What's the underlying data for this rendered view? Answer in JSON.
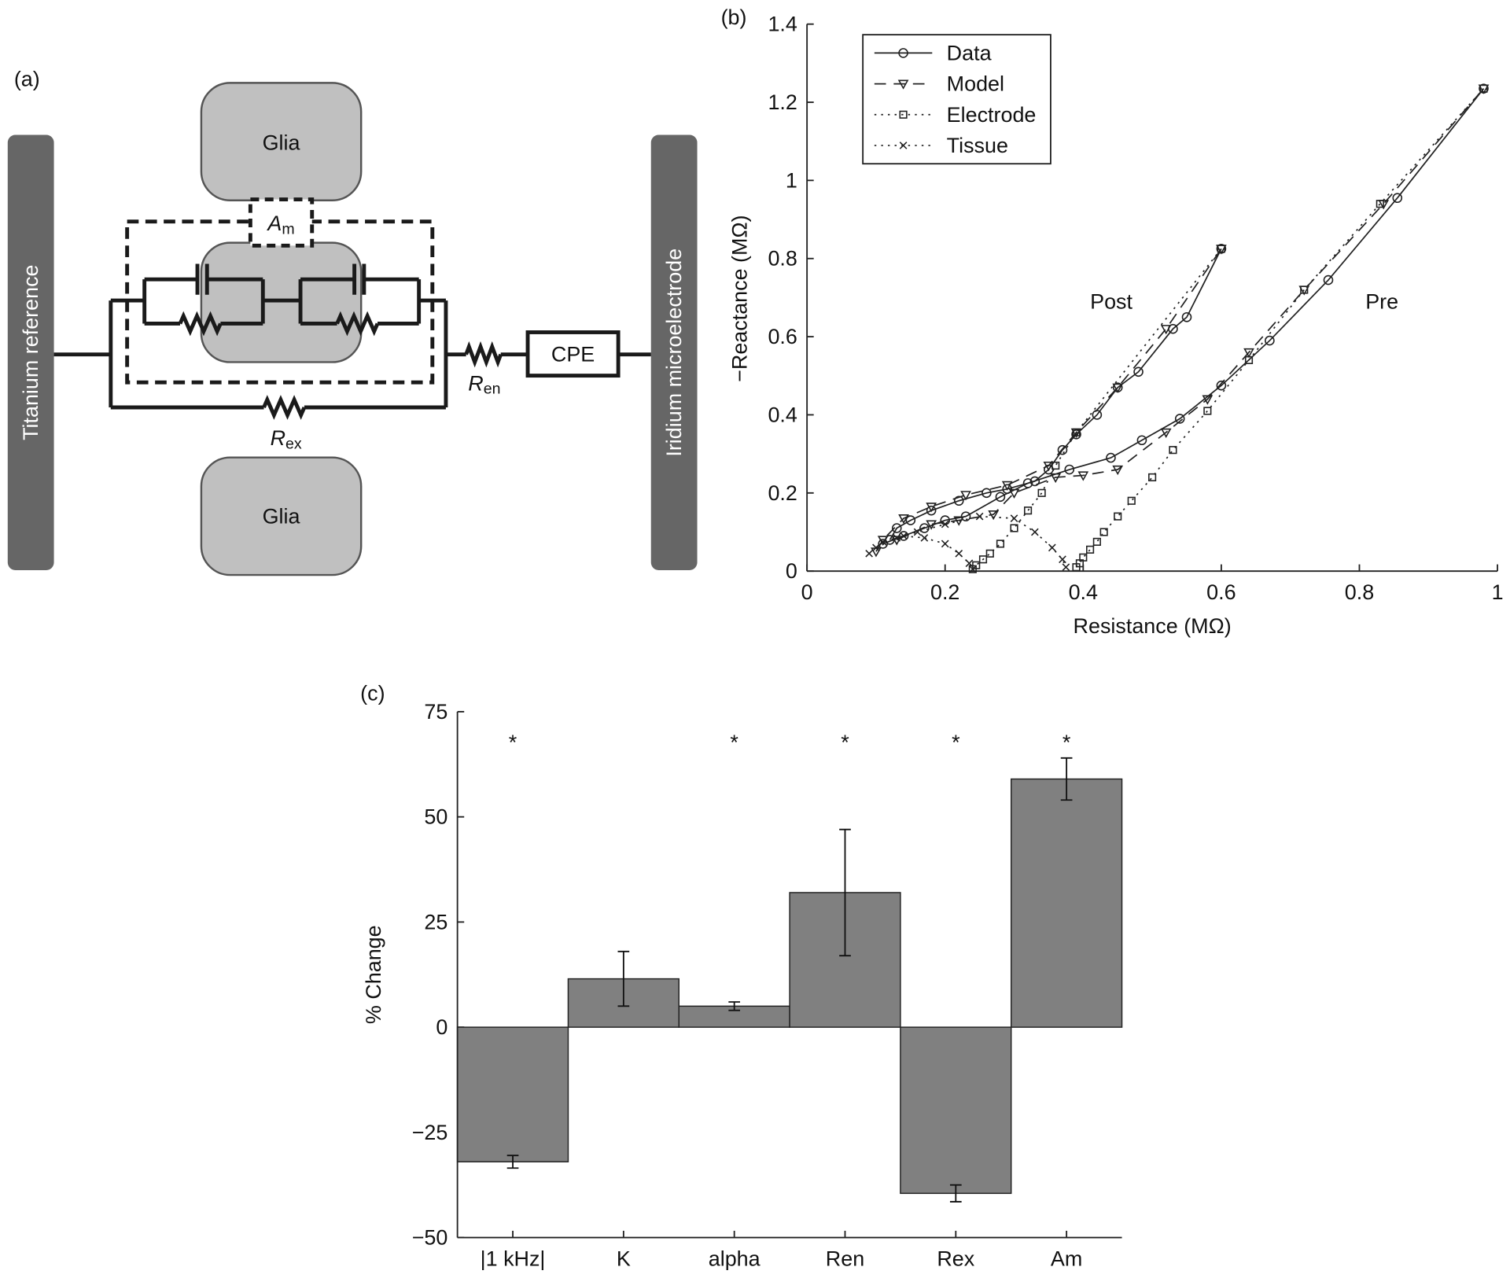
{
  "diagram": {
    "panel_label": "(a)",
    "left_electrode": "Titanium reference",
    "right_electrode": "Iridium microelectrode",
    "glia_top": "Glia",
    "glia_bottom": "Glia",
    "membrane": {
      "symbol": "A",
      "subscript": "m"
    },
    "r_en": {
      "symbol": "R",
      "subscript": "en"
    },
    "r_ex": {
      "symbol": "R",
      "subscript": "ex"
    },
    "cpe": "CPE"
  },
  "chart_data": [
    {
      "type": "line",
      "panel_label": "(b)",
      "x_label": "Resistance (MΩ)",
      "y_label": "−Reactance (MΩ)",
      "xlim": [
        0,
        1
      ],
      "ylim": [
        0,
        1.4
      ],
      "xticks": [
        0,
        0.2,
        0.4,
        0.6,
        0.8,
        1
      ],
      "yticks": [
        0,
        0.2,
        0.4,
        0.6,
        0.8,
        1,
        1.2,
        1.4
      ],
      "legend": "upper left",
      "annotations": [
        "Post",
        "Pre"
      ],
      "series": [
        {
          "name": "Data",
          "color": "#222222",
          "dash": "solid",
          "marker": "circle",
          "curves": [
            {
              "x": [
                0.12,
                0.13,
                0.15,
                0.18,
                0.22,
                0.26,
                0.29,
                0.33,
                0.35,
                0.37,
                0.39,
                0.42,
                0.45,
                0.48,
                0.53,
                0.55,
                0.6
              ],
              "y": [
                0.08,
                0.11,
                0.13,
                0.155,
                0.18,
                0.2,
                0.21,
                0.23,
                0.26,
                0.31,
                0.35,
                0.4,
                0.47,
                0.51,
                0.62,
                0.65,
                0.825
              ]
            },
            {
              "x": [
                0.11,
                0.14,
                0.17,
                0.2,
                0.23,
                0.28,
                0.32,
                0.38,
                0.44,
                0.485,
                0.54,
                0.6,
                0.67,
                0.755,
                0.855,
                0.98
              ],
              "y": [
                0.07,
                0.09,
                0.11,
                0.13,
                0.14,
                0.19,
                0.225,
                0.26,
                0.29,
                0.335,
                0.39,
                0.475,
                0.59,
                0.745,
                0.955,
                1.235
              ]
            }
          ]
        },
        {
          "name": "Model",
          "color": "#222222",
          "dash": "dashed",
          "marker": "triangle",
          "curves": [
            {
              "x": [
                0.1,
                0.11,
                0.14,
                0.18,
                0.23,
                0.29,
                0.35,
                0.39,
                0.45,
                0.52,
                0.6
              ],
              "y": [
                0.05,
                0.08,
                0.135,
                0.165,
                0.195,
                0.22,
                0.27,
                0.355,
                0.47,
                0.62,
                0.825
              ]
            },
            {
              "x": [
                0.13,
                0.18,
                0.22,
                0.27,
                0.3,
                0.36,
                0.4,
                0.45,
                0.52,
                0.58,
                0.64,
                0.72,
                0.835,
                0.98
              ],
              "y": [
                0.08,
                0.12,
                0.13,
                0.145,
                0.2,
                0.24,
                0.245,
                0.26,
                0.355,
                0.44,
                0.56,
                0.72,
                0.94,
                1.235
              ]
            }
          ]
        },
        {
          "name": "Electrode",
          "color": "#222222",
          "dash": "dotted",
          "marker": "square",
          "curves": [
            {
              "x": [
                0.24,
                0.245,
                0.255,
                0.265,
                0.28,
                0.3,
                0.32,
                0.34,
                0.36,
                0.39,
                0.6
              ],
              "y": [
                0.005,
                0.015,
                0.03,
                0.045,
                0.07,
                0.11,
                0.155,
                0.2,
                0.27,
                0.355,
                0.825
              ]
            },
            {
              "x": [
                0.39,
                0.395,
                0.4,
                0.41,
                0.42,
                0.43,
                0.45,
                0.47,
                0.5,
                0.53,
                0.58,
                0.64,
                0.72,
                0.83,
                0.98
              ],
              "y": [
                0.01,
                0.02,
                0.035,
                0.055,
                0.075,
                0.1,
                0.14,
                0.18,
                0.24,
                0.31,
                0.41,
                0.54,
                0.72,
                0.94,
                1.235
              ]
            }
          ]
        },
        {
          "name": "Tissue",
          "color": "#222222",
          "dash": "dotted",
          "marker": "cross",
          "curves": [
            {
              "x": [
                0.09,
                0.11,
                0.14,
                0.17,
                0.2,
                0.22,
                0.235,
                0.24
              ],
              "y": [
                0.045,
                0.075,
                0.09,
                0.085,
                0.07,
                0.045,
                0.02,
                0.005
              ]
            },
            {
              "x": [
                0.1,
                0.13,
                0.16,
                0.2,
                0.25,
                0.3,
                0.33,
                0.355,
                0.37,
                0.375
              ],
              "y": [
                0.06,
                0.085,
                0.1,
                0.12,
                0.14,
                0.135,
                0.1,
                0.06,
                0.03,
                0.01
              ]
            }
          ]
        }
      ]
    },
    {
      "type": "bar",
      "panel_label": "(c)",
      "y_label": "% Change",
      "categories": [
        "|1 kHz|",
        "K",
        "alpha",
        "Ren",
        "Rex",
        "Am"
      ],
      "values": [
        -32,
        11.5,
        5,
        32,
        -39.5,
        59
      ],
      "errors": [
        1.5,
        6.5,
        1,
        15,
        2,
        5
      ],
      "significance": [
        "*",
        null,
        "*",
        "*",
        "*",
        "*"
      ],
      "color": "#808080",
      "ylim": [
        -50,
        75
      ],
      "yticks": [
        {
          "value": -50,
          "label": "−50"
        },
        {
          "value": -25,
          "label": "−25"
        },
        0,
        25,
        50,
        75
      ]
    }
  ]
}
